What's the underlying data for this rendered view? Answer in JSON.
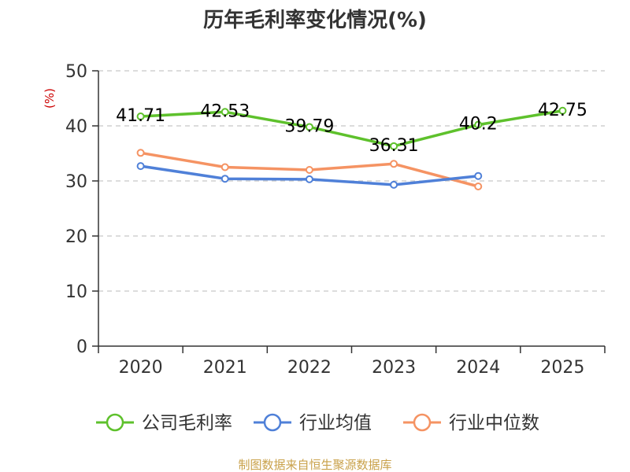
{
  "chart_data": {
    "type": "line",
    "title": "历年毛利率变化情况(%)",
    "ylabel": "(%)",
    "xlabel": "",
    "categories": [
      "2020",
      "2021",
      "2022",
      "2023",
      "2024",
      "2025"
    ],
    "ylim": [
      0,
      50
    ],
    "yticks": [
      0,
      10,
      20,
      30,
      40,
      50
    ],
    "grid": true,
    "legend_position": "bottom",
    "series": [
      {
        "name": "公司毛利率",
        "color": "#5ec12c",
        "values": [
          41.71,
          42.53,
          39.79,
          36.31,
          40.2,
          42.75
        ],
        "labels": [
          "41.71",
          "42.53",
          "39.79",
          "36.31",
          "40.2",
          "42.75"
        ]
      },
      {
        "name": "行业均值",
        "color": "#4f80d8",
        "values": [
          32.7,
          30.4,
          30.3,
          29.3,
          30.9,
          null
        ]
      },
      {
        "name": "行业中位数",
        "color": "#f59363",
        "values": [
          35.1,
          32.5,
          32.0,
          33.1,
          29.0,
          null
        ]
      }
    ],
    "source": "制图数据来自恒生聚源数据库"
  }
}
